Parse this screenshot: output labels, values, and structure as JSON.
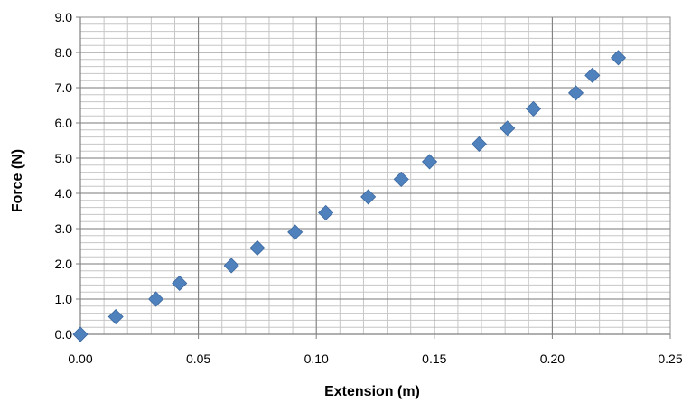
{
  "chart_data": {
    "type": "scatter",
    "xlabel": "Extension (m)",
    "ylabel": "Force  (N)",
    "xlim": [
      0,
      0.25
    ],
    "ylim": [
      0,
      9
    ],
    "x_ticks": [
      0,
      0.05,
      0.1,
      0.15,
      0.2,
      0.25
    ],
    "x_tick_labels": [
      "0.00",
      "0.05",
      "0.10",
      "0.15",
      "0.20",
      "0.25"
    ],
    "y_ticks": [
      0,
      1,
      2,
      3,
      4,
      5,
      6,
      7,
      8,
      9
    ],
    "y_tick_labels": [
      "0.0",
      "1.0",
      "2.0",
      "3.0",
      "4.0",
      "5.0",
      "6.0",
      "7.0",
      "8.0",
      "9.0"
    ],
    "grid": true,
    "legend": "none",
    "marker": "diamond",
    "marker_color": "#4f81bd",
    "series": [
      {
        "x": [
          0.0,
          0.015,
          0.032,
          0.042,
          0.064,
          0.075,
          0.091,
          0.104,
          0.122,
          0.136,
          0.148,
          0.169,
          0.181,
          0.192,
          0.21,
          0.217,
          0.228
        ],
        "y": [
          0.0,
          0.5,
          1.0,
          1.45,
          1.95,
          2.45,
          2.9,
          3.45,
          3.9,
          4.4,
          4.9,
          5.4,
          5.85,
          6.4,
          6.85,
          7.35,
          7.85
        ]
      }
    ]
  }
}
